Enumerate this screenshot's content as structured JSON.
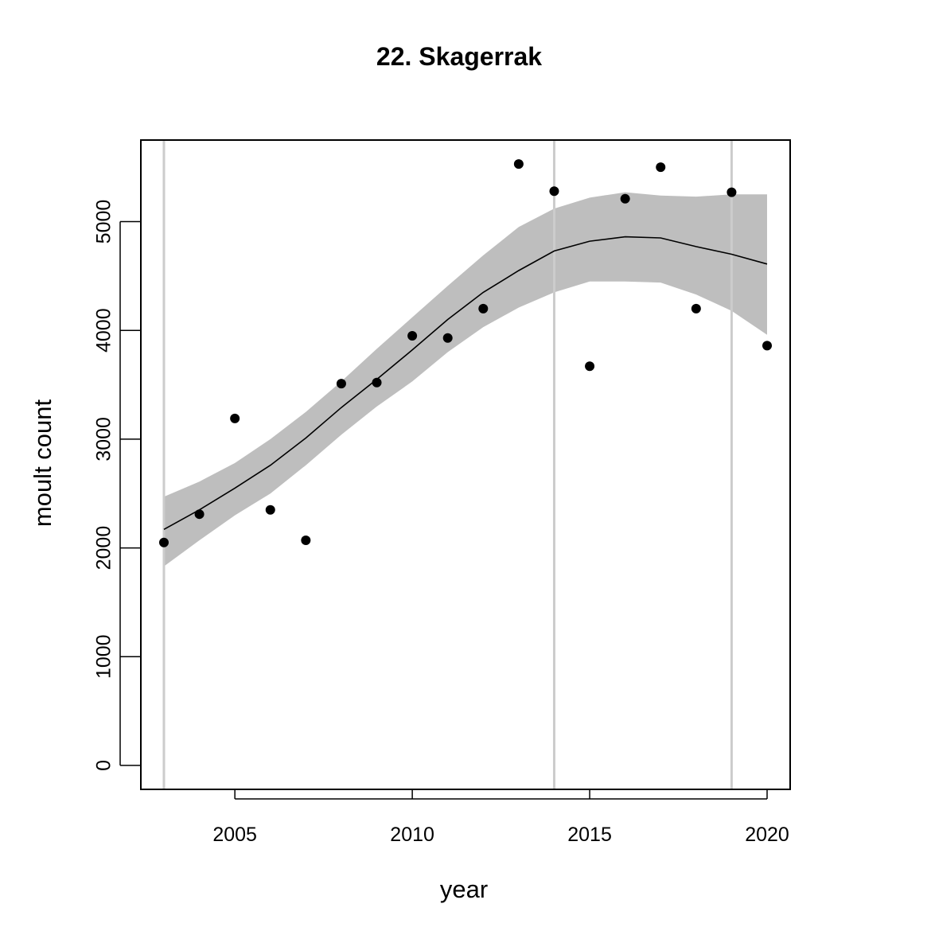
{
  "chart_data": {
    "type": "scatter",
    "title": "22. Skagerrak",
    "xlabel": "year",
    "ylabel": "moult count",
    "xlim": [
      2002.35,
      2020.65
    ],
    "ylim": [
      -220,
      5750
    ],
    "x_ticks": [
      "2005",
      "2010",
      "2015",
      "2020"
    ],
    "y_ticks": [
      "0",
      "1000",
      "2000",
      "3000",
      "4000",
      "5000"
    ],
    "grid": false,
    "points": {
      "x": [
        2003,
        2004,
        2005,
        2006,
        2007,
        2008,
        2009,
        2010,
        2011,
        2012,
        2013,
        2014,
        2015,
        2016,
        2017,
        2018,
        2019,
        2020
      ],
      "y": [
        2050,
        2310,
        3190,
        2350,
        2070,
        3510,
        3520,
        3950,
        3930,
        4200,
        5530,
        5280,
        3670,
        5210,
        5500,
        4200,
        5270,
        3860
      ]
    },
    "fit_line": {
      "x": [
        2003,
        2004,
        2005,
        2006,
        2007,
        2008,
        2009,
        2010,
        2011,
        2012,
        2013,
        2014,
        2015,
        2016,
        2017,
        2018,
        2019,
        2020
      ],
      "y": [
        2170,
        2350,
        2550,
        2760,
        3010,
        3290,
        3550,
        3820,
        4100,
        4350,
        4550,
        4730,
        4820,
        4860,
        4850,
        4770,
        4700,
        4610
      ]
    },
    "confidence_band": {
      "x": [
        2003,
        2004,
        2005,
        2006,
        2007,
        2008,
        2009,
        2010,
        2011,
        2012,
        2013,
        2014,
        2015,
        2016,
        2017,
        2018,
        2019,
        2020
      ],
      "upper": [
        2470,
        2610,
        2780,
        3000,
        3250,
        3530,
        3830,
        4120,
        4410,
        4690,
        4950,
        5120,
        5220,
        5270,
        5240,
        5230,
        5250,
        5250
      ],
      "lower": [
        1830,
        2070,
        2300,
        2500,
        2760,
        3040,
        3300,
        3530,
        3800,
        4030,
        4210,
        4350,
        4450,
        4450,
        4440,
        4330,
        4180,
        3960
      ]
    },
    "vertical_lines_x": [
      2003,
      2014,
      2019
    ],
    "colors": {
      "points": "#000000",
      "fit_line": "#000000",
      "band": "#bebebe",
      "vertical_lines": "#cccccc",
      "frame": "#000000"
    }
  }
}
